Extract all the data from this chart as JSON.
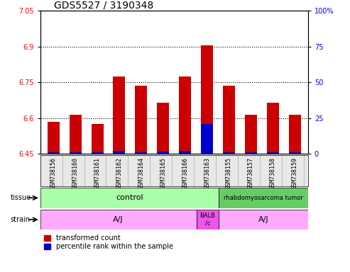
{
  "title": "GDS5527 / 3190348",
  "samples": [
    "GSM738156",
    "GSM738160",
    "GSM738161",
    "GSM738162",
    "GSM738164",
    "GSM738165",
    "GSM738166",
    "GSM738163",
    "GSM738155",
    "GSM738157",
    "GSM738158",
    "GSM738159"
  ],
  "red_values": [
    6.585,
    6.615,
    6.575,
    6.775,
    6.735,
    6.665,
    6.775,
    6.905,
    6.735,
    6.615,
    6.665,
    6.615
  ],
  "blue_values": [
    6.455,
    6.457,
    6.455,
    6.463,
    6.457,
    6.458,
    6.463,
    6.575,
    6.455,
    6.457,
    6.457,
    6.455
  ],
  "baseline": 6.45,
  "ylim_min": 6.45,
  "ylim_max": 7.05,
  "yticks_left": [
    6.45,
    6.6,
    6.75,
    6.9,
    7.05
  ],
  "yticks_right": [
    0,
    25,
    50,
    75,
    100
  ],
  "dotted_lines": [
    6.6,
    6.75,
    6.9
  ],
  "bar_width": 0.55,
  "red_color": "#CC0000",
  "blue_color": "#0000CC",
  "title_fontsize": 10,
  "tick_fontsize": 7,
  "label_fontsize": 7,
  "tissue_control_color": "#aaffaa",
  "tissue_tumor_color": "#66cc66",
  "strain_aj_color": "#ffaaff",
  "strain_balb_color": "#ee55ee"
}
